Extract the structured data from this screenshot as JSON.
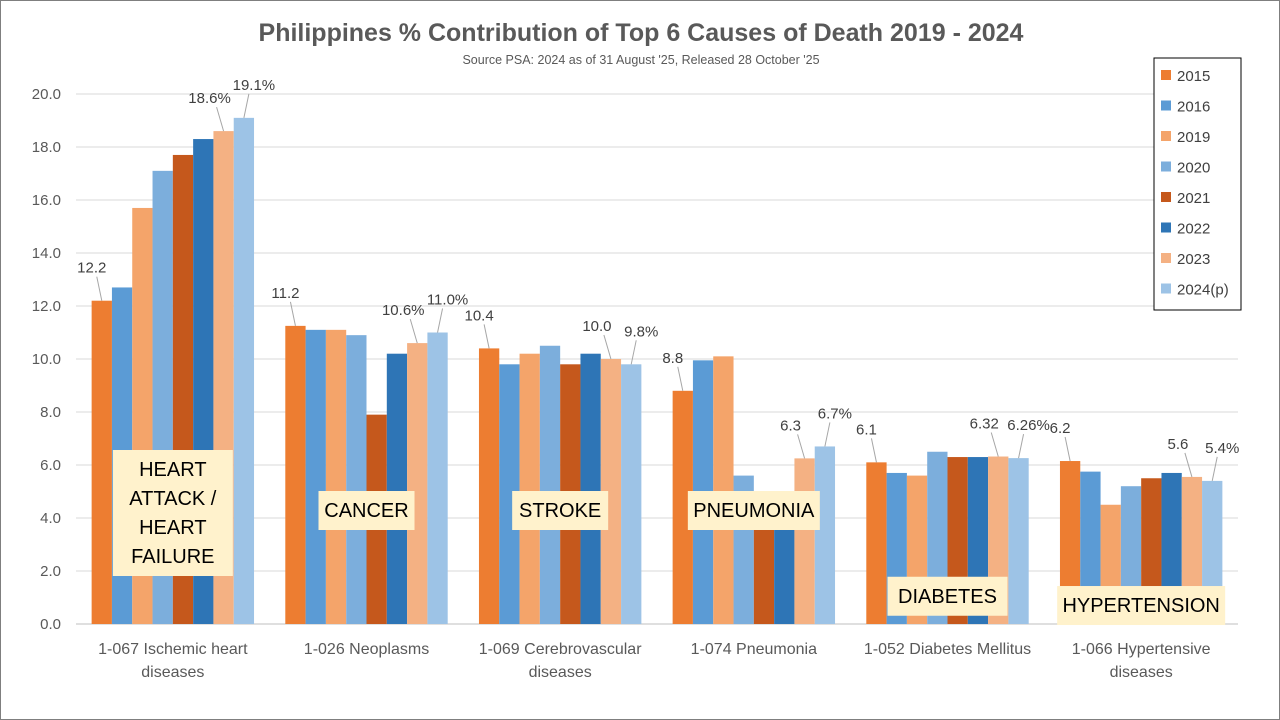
{
  "chart_data": {
    "type": "bar",
    "title": "Philippines % Contribution of Top 6 Causes of Death 2019 - 2024",
    "subtitle": "Source PSA: 2024 as of 31 August '25, Released 28 October '25",
    "ylim": [
      0,
      20
    ],
    "yticks": [
      "0.0",
      "2.0",
      "4.0",
      "6.0",
      "8.0",
      "10.0",
      "12.0",
      "14.0",
      "16.0",
      "18.0",
      "20.0"
    ],
    "grid": true,
    "legend_position": "top-right",
    "categories": [
      [
        "1-067  Ischemic heart",
        "diseases"
      ],
      [
        "1-026  Neoplasms"
      ],
      [
        "1-069  Cerebrovascular",
        "diseases"
      ],
      [
        "1-074  Pneumonia"
      ],
      [
        "1-052  Diabetes Mellitus"
      ],
      [
        "1-066  Hypertensive",
        "diseases"
      ]
    ],
    "series": [
      {
        "name": "2015",
        "color": "#ED7D31",
        "values": [
          12.2,
          11.25,
          10.4,
          8.8,
          6.1,
          6.15
        ]
      },
      {
        "name": "2016",
        "color": "#5B9BD5",
        "values": [
          12.7,
          11.1,
          9.8,
          9.95,
          5.7,
          5.75
        ]
      },
      {
        "name": "2019",
        "color": "#F4A46A",
        "values": [
          15.7,
          11.1,
          10.2,
          10.1,
          5.6,
          4.5
        ]
      },
      {
        "name": "2020",
        "color": "#7CAEDC",
        "values": [
          17.1,
          10.9,
          10.5,
          5.6,
          6.5,
          5.2
        ]
      },
      {
        "name": "2021",
        "color": "#C5581C",
        "values": [
          17.7,
          7.9,
          9.8,
          4.3,
          6.3,
          5.5
        ]
      },
      {
        "name": "2022",
        "color": "#2E75B6",
        "values": [
          18.3,
          10.2,
          10.2,
          5.0,
          6.3,
          5.7
        ]
      },
      {
        "name": "2023",
        "color": "#F4B183",
        "values": [
          18.6,
          10.6,
          10.0,
          6.25,
          6.32,
          5.55
        ]
      },
      {
        "name": "2024(p)",
        "color": "#9DC3E6",
        "values": [
          19.1,
          11.0,
          9.8,
          6.7,
          6.26,
          5.4
        ]
      }
    ],
    "data_labels": [
      {
        "category": 0,
        "series": 0,
        "text": "12.2"
      },
      {
        "category": 0,
        "series": 6,
        "text": "18.6%"
      },
      {
        "category": 0,
        "series": 7,
        "text": "19.1%"
      },
      {
        "category": 1,
        "series": 0,
        "text": "11.2"
      },
      {
        "category": 1,
        "series": 6,
        "text": "10.6%"
      },
      {
        "category": 1,
        "series": 7,
        "text": "11.0%"
      },
      {
        "category": 2,
        "series": 0,
        "text": "10.4"
      },
      {
        "category": 2,
        "series": 6,
        "text": "10.0"
      },
      {
        "category": 2,
        "series": 7,
        "text": "9.8%"
      },
      {
        "category": 3,
        "series": 0,
        "text": "8.8"
      },
      {
        "category": 3,
        "series": 6,
        "text": "6.3"
      },
      {
        "category": 3,
        "series": 7,
        "text": "6.7%"
      },
      {
        "category": 4,
        "series": 0,
        "text": "6.1"
      },
      {
        "category": 4,
        "series": 6,
        "text": "6.32"
      },
      {
        "category": 4,
        "series": 7,
        "text": "6.26%"
      },
      {
        "category": 5,
        "series": 0,
        "text": "6.2"
      },
      {
        "category": 5,
        "series": 6,
        "text": "5.6"
      },
      {
        "category": 5,
        "series": 7,
        "text": "5.4%"
      }
    ],
    "annotations": [
      {
        "category": 0,
        "lines": [
          "HEART",
          "ATTACK /",
          "HEART",
          "FAILURE"
        ]
      },
      {
        "category": 1,
        "lines": [
          "CANCER"
        ]
      },
      {
        "category": 2,
        "lines": [
          "STROKE"
        ]
      },
      {
        "category": 3,
        "lines": [
          "PNEUMONIA"
        ]
      },
      {
        "category": 4,
        "lines": [
          "DIABETES"
        ]
      },
      {
        "category": 5,
        "lines": [
          "HYPERTENSION"
        ]
      }
    ],
    "annotation_color": "#FFF2CC"
  }
}
